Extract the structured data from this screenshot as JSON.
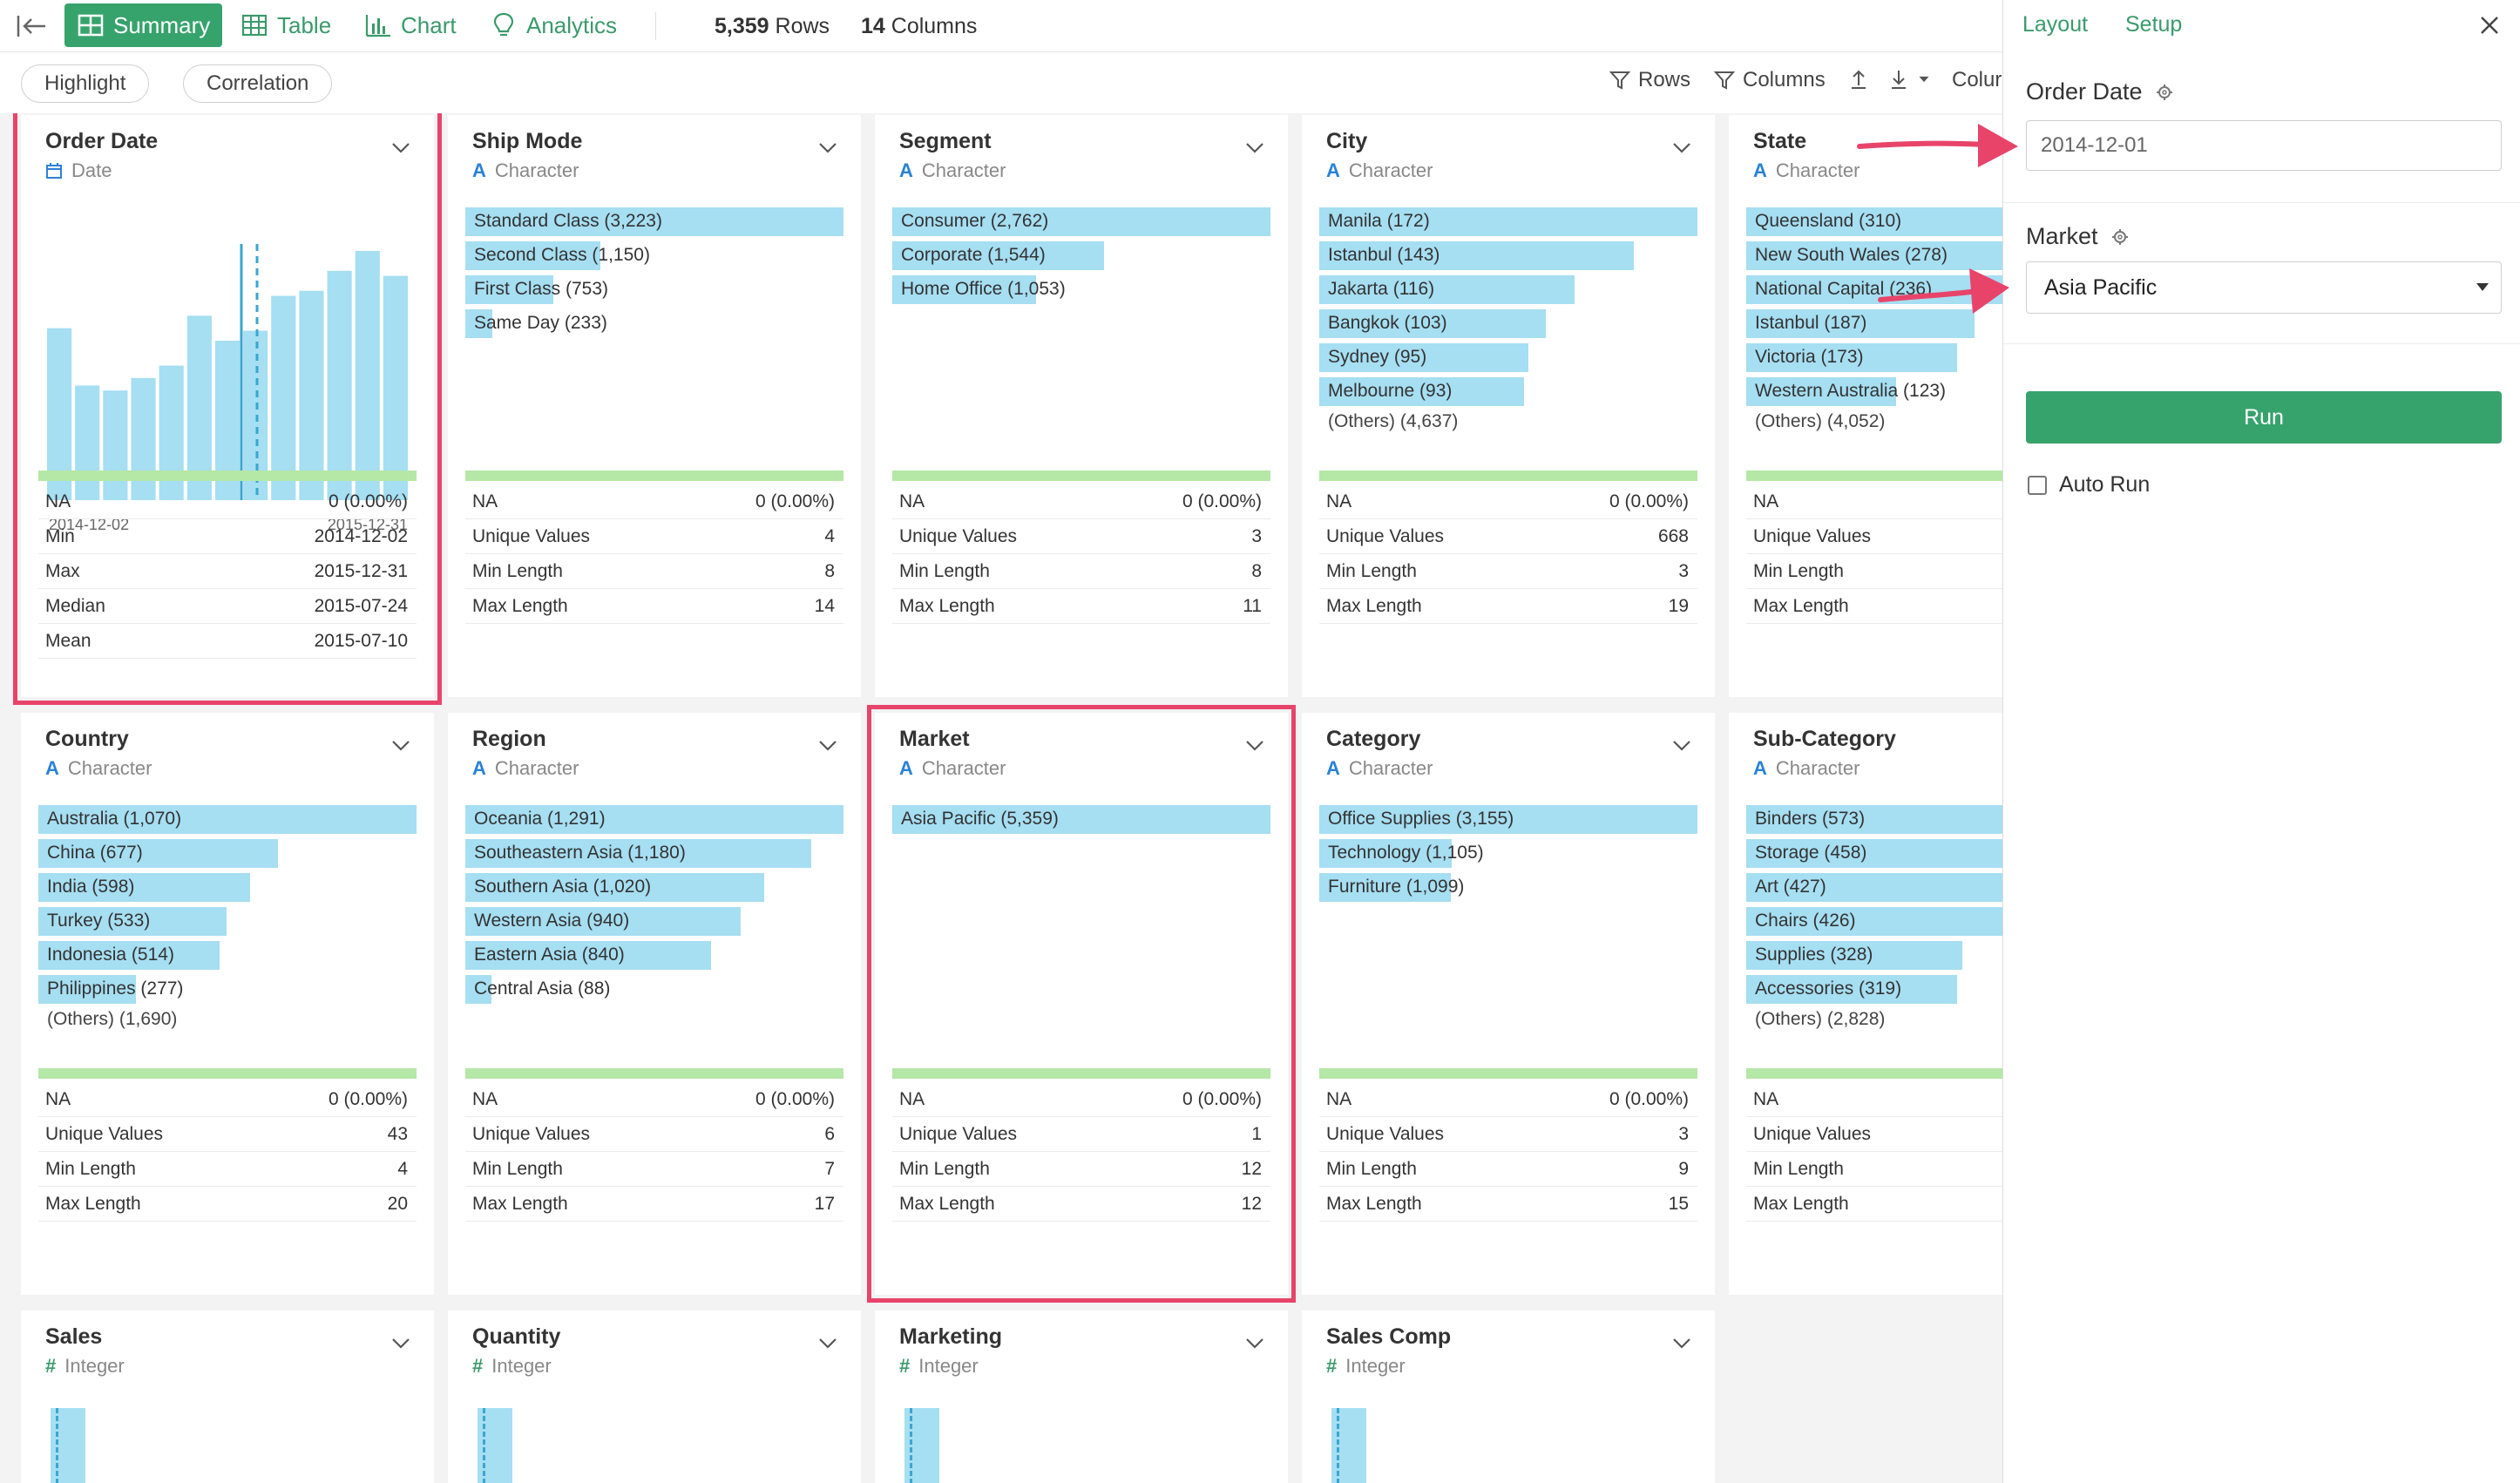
{
  "topbar": {
    "tabs": [
      {
        "label": "Summary",
        "icon": "grid-icon",
        "active": true
      },
      {
        "label": "Table",
        "icon": "table-icon",
        "active": false
      },
      {
        "label": "Chart",
        "icon": "bar-chart-icon",
        "active": false
      },
      {
        "label": "Analytics",
        "icon": "lightbulb-icon",
        "active": false
      }
    ],
    "rows_count": "5,359",
    "rows_label": "Rows",
    "columns_count": "14",
    "columns_label": "Columns"
  },
  "subbar": {
    "highlight": "Highlight",
    "correlation": "Correlation",
    "rows": "Rows",
    "columns": "Columns",
    "column_cut": "Colur"
  },
  "cards": {
    "order_date": {
      "name": "Order Date",
      "type": "Date",
      "hist_start": "2014-12-02",
      "hist_end": "2015-12-31",
      "stats": [
        {
          "k": "NA",
          "v": "0 (0.00%)"
        },
        {
          "k": "Min",
          "v": "2014-12-02"
        },
        {
          "k": "Max",
          "v": "2015-12-31"
        },
        {
          "k": "Median",
          "v": "2015-07-24"
        },
        {
          "k": "Mean",
          "v": "2015-07-10"
        }
      ]
    },
    "ship_mode": {
      "name": "Ship Mode",
      "type": "Character",
      "bars": [
        {
          "label": "Standard Class (3,223)",
          "value": 3223
        },
        {
          "label": "Second Class (1,150)",
          "value": 1150
        },
        {
          "label": "First Class (753)",
          "value": 753
        },
        {
          "label": "Same Day (233)",
          "value": 233
        }
      ],
      "stats": [
        {
          "k": "NA",
          "v": "0 (0.00%)"
        },
        {
          "k": "Unique Values",
          "v": "4"
        },
        {
          "k": "Min Length",
          "v": "8"
        },
        {
          "k": "Max Length",
          "v": "14"
        }
      ]
    },
    "segment": {
      "name": "Segment",
      "type": "Character",
      "bars": [
        {
          "label": "Consumer (2,762)",
          "value": 2762
        },
        {
          "label": "Corporate (1,544)",
          "value": 1544
        },
        {
          "label": "Home Office (1,053)",
          "value": 1053
        }
      ],
      "stats": [
        {
          "k": "NA",
          "v": "0 (0.00%)"
        },
        {
          "k": "Unique Values",
          "v": "3"
        },
        {
          "k": "Min Length",
          "v": "8"
        },
        {
          "k": "Max Length",
          "v": "11"
        }
      ]
    },
    "city": {
      "name": "City",
      "type": "Character",
      "bars": [
        {
          "label": "Manila (172)",
          "value": 172
        },
        {
          "label": "Istanbul (143)",
          "value": 143
        },
        {
          "label": "Jakarta (116)",
          "value": 116
        },
        {
          "label": "Bangkok (103)",
          "value": 103
        },
        {
          "label": "Sydney (95)",
          "value": 95
        },
        {
          "label": "Melbourne (93)",
          "value": 93
        }
      ],
      "others": "(Others) (4,637)",
      "stats": [
        {
          "k": "NA",
          "v": "0 (0.00%)"
        },
        {
          "k": "Unique Values",
          "v": "668"
        },
        {
          "k": "Min Length",
          "v": "3"
        },
        {
          "k": "Max Length",
          "v": "19"
        }
      ]
    },
    "state": {
      "name": "State",
      "type": "Character",
      "bars": [
        {
          "label": "Queensland (310)",
          "value": 310
        },
        {
          "label": "New South Wales (278)",
          "value": 278
        },
        {
          "label": "National Capital (236)",
          "value": 236
        },
        {
          "label": "Istanbul (187)",
          "value": 187
        },
        {
          "label": "Victoria (173)",
          "value": 173
        },
        {
          "label": "Western Australia (123)",
          "value": 123
        }
      ],
      "others": "(Others) (4,052)",
      "stats": [
        {
          "k": "NA",
          "v": ""
        },
        {
          "k": "Unique Values",
          "v": ""
        },
        {
          "k": "Min Length",
          "v": ""
        },
        {
          "k": "Max Length",
          "v": ""
        }
      ]
    },
    "country": {
      "name": "Country",
      "type": "Character",
      "bars": [
        {
          "label": "Australia (1,070)",
          "value": 1070
        },
        {
          "label": "China (677)",
          "value": 677
        },
        {
          "label": "India (598)",
          "value": 598
        },
        {
          "label": "Turkey (533)",
          "value": 533
        },
        {
          "label": "Indonesia (514)",
          "value": 514
        },
        {
          "label": "Philippines (277)",
          "value": 277
        }
      ],
      "others": "(Others) (1,690)",
      "stats": [
        {
          "k": "NA",
          "v": "0 (0.00%)"
        },
        {
          "k": "Unique Values",
          "v": "43"
        },
        {
          "k": "Min Length",
          "v": "4"
        },
        {
          "k": "Max Length",
          "v": "20"
        }
      ]
    },
    "region": {
      "name": "Region",
      "type": "Character",
      "bars": [
        {
          "label": "Oceania (1,291)",
          "value": 1291
        },
        {
          "label": "Southeastern Asia (1,180)",
          "value": 1180
        },
        {
          "label": "Southern Asia (1,020)",
          "value": 1020
        },
        {
          "label": "Western Asia (940)",
          "value": 940
        },
        {
          "label": "Eastern Asia (840)",
          "value": 840
        },
        {
          "label": "Central Asia (88)",
          "value": 88
        }
      ],
      "stats": [
        {
          "k": "NA",
          "v": "0 (0.00%)"
        },
        {
          "k": "Unique Values",
          "v": "6"
        },
        {
          "k": "Min Length",
          "v": "7"
        },
        {
          "k": "Max Length",
          "v": "17"
        }
      ]
    },
    "market": {
      "name": "Market",
      "type": "Character",
      "bars": [
        {
          "label": "Asia Pacific (5,359)",
          "value": 5359
        }
      ],
      "stats": [
        {
          "k": "NA",
          "v": "0 (0.00%)"
        },
        {
          "k": "Unique Values",
          "v": "1"
        },
        {
          "k": "Min Length",
          "v": "12"
        },
        {
          "k": "Max Length",
          "v": "12"
        }
      ]
    },
    "category": {
      "name": "Category",
      "type": "Character",
      "bars": [
        {
          "label": "Office Supplies (3,155)",
          "value": 3155
        },
        {
          "label": "Technology (1,105)",
          "value": 1105
        },
        {
          "label": "Furniture (1,099)",
          "value": 1099
        }
      ],
      "stats": [
        {
          "k": "NA",
          "v": "0 (0.00%)"
        },
        {
          "k": "Unique Values",
          "v": "3"
        },
        {
          "k": "Min Length",
          "v": "9"
        },
        {
          "k": "Max Length",
          "v": "15"
        }
      ]
    },
    "sub_category": {
      "name": "Sub-Category",
      "type": "Character",
      "bars": [
        {
          "label": "Binders (573)",
          "value": 573
        },
        {
          "label": "Storage (458)",
          "value": 458
        },
        {
          "label": "Art (427)",
          "value": 427
        },
        {
          "label": "Chairs (426)",
          "value": 426
        },
        {
          "label": "Supplies (328)",
          "value": 328
        },
        {
          "label": "Accessories (319)",
          "value": 319
        }
      ],
      "others": "(Others) (2,828)",
      "stats": [
        {
          "k": "NA",
          "v": ""
        },
        {
          "k": "Unique Values",
          "v": ""
        },
        {
          "k": "Min Length",
          "v": ""
        },
        {
          "k": "Max Length",
          "v": ""
        }
      ]
    },
    "sales": {
      "name": "Sales",
      "type": "Integer"
    },
    "quantity": {
      "name": "Quantity",
      "type": "Integer"
    },
    "marketing": {
      "name": "Marketing",
      "type": "Integer"
    },
    "sales_comp": {
      "name": "Sales Comp",
      "type": "Integer"
    }
  },
  "order_date_histogram": {
    "values": [
      0.69,
      0.46,
      0.44,
      0.49,
      0.54,
      0.74,
      0.64,
      0.68,
      0.82,
      0.84,
      0.92,
      1.0,
      0.9
    ]
  },
  "panel": {
    "tab_layout": "Layout",
    "tab_setup": "Setup",
    "order_date_label": "Order Date",
    "order_date_value": "2014-12-01",
    "market_label": "Market",
    "market_value": "Asia Pacific",
    "run_label": "Run",
    "auto_run_label": "Auto Run"
  },
  "colors": {
    "accent_green": "#37a36c",
    "bar_blue": "#a6def2",
    "highlight_pink": "#e8446a",
    "na_bar_green": "#b5e7a7"
  }
}
